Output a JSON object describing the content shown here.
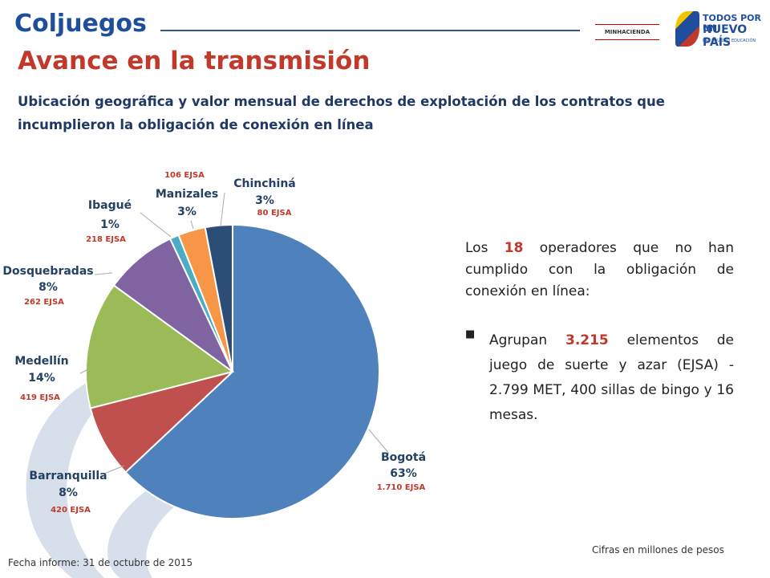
{
  "header": {
    "logo": "Coljuegos",
    "ministry": "MINHACIENDA",
    "slogan_top": "TODOS POR UN",
    "slogan_main": "NUEVO PAÍS",
    "slogan_sub": "PAZ  EQUIDAD  EDUCACIÓN"
  },
  "title": "Avance en la transmisión",
  "subtitle": "Ubicación geográfica y valor mensual de derechos de explotación de los contratos que incumplieron la obligación de conexión en línea",
  "chart_data": {
    "type": "pie",
    "categories": [
      "Bogotá",
      "Barranquilla",
      "Medellín",
      "Dosquebradas",
      "Ibagué",
      "Manizales",
      "Chinchiná"
    ],
    "values": [
      63,
      8,
      14,
      8,
      1,
      3,
      3
    ],
    "value_labels": [
      "63%",
      "8%",
      "14%",
      "8%",
      "1%",
      "3%",
      "3%"
    ],
    "colors": [
      "#4f81bd",
      "#c0504d",
      "#9bbb59",
      "#8064a2",
      "#4bacc6",
      "#f79646",
      "#2c4d75"
    ],
    "annotations": [
      "1.710 EJSA",
      "420 EJSA",
      "419 EJSA",
      "262 EJSA",
      "218 EJSA",
      "106 EJSA",
      "80 EJSA"
    ]
  },
  "summary": {
    "intro_before": "Los",
    "intro_number": "18",
    "intro_after": "operadores que no han cumplido con la obligación de conexión en línea:",
    "bullet_before": "Agrupan",
    "bullet_number": "3.215",
    "bullet_after": "elementos de juego de suerte y azar (EJSA) - 2.799 MET, 400 sillas de bingo y 16 mesas."
  },
  "footer": {
    "date": "Fecha informe: 31 de octubre de 2015",
    "note": "Cifras en millones de pesos"
  }
}
